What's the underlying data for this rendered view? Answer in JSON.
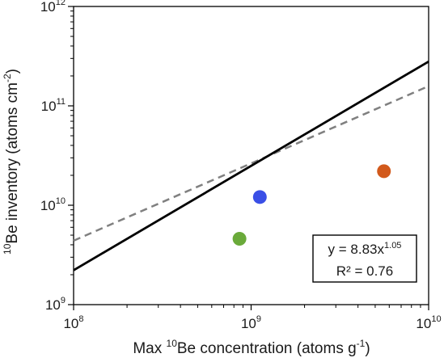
{
  "chart_data": {
    "type": "scatter",
    "xscale": "log",
    "yscale": "log",
    "xlim": [
      100000000,
      10000000000
    ],
    "ylim": [
      1000000000,
      1000000000000
    ],
    "x_ticks": [
      {
        "value": 100000000,
        "base": "10",
        "exp": "8"
      },
      {
        "value": 1000000000,
        "base": "10",
        "exp": "9"
      },
      {
        "value": 10000000000,
        "base": "10",
        "exp": "10"
      }
    ],
    "y_ticks": [
      {
        "value": 1000000000,
        "base": "10",
        "exp": "9"
      },
      {
        "value": 10000000000,
        "base": "10",
        "exp": "10"
      },
      {
        "value": 100000000000,
        "base": "10",
        "exp": "11"
      },
      {
        "value": 1000000000000,
        "base": "10",
        "exp": "12"
      }
    ],
    "xlabel": {
      "pre": "Max ",
      "sup": "10",
      "mid": "Be concentration (atoms g",
      "sup2": "-1",
      "post": ")"
    },
    "ylabel": {
      "sup": "10",
      "mid": "Be inventory (atoms cm",
      "sup2": "-2",
      "post": ")"
    },
    "points": [
      {
        "x": 860000000,
        "y": 4600000000,
        "color": "#6aaa3a"
      },
      {
        "x": 1120000000,
        "y": 12100000000,
        "color": "#3a4fe6"
      },
      {
        "x": 5600000000,
        "y": 22000000000,
        "color": "#d2591b"
      }
    ],
    "fit_line": {
      "coef": 8.83,
      "exp": 1.05,
      "color": "#000000",
      "style": "solid"
    },
    "reference_line": {
      "x": [
        100000000,
        10000000000
      ],
      "y": [
        4400000000,
        158000000000
      ],
      "color": "#808080",
      "style": "dashed"
    },
    "equation": {
      "line1_pre": "y = 8.83x",
      "line1_sup": "1.05",
      "line2": "R² = 0.76"
    },
    "grid": false,
    "legend": "none"
  }
}
